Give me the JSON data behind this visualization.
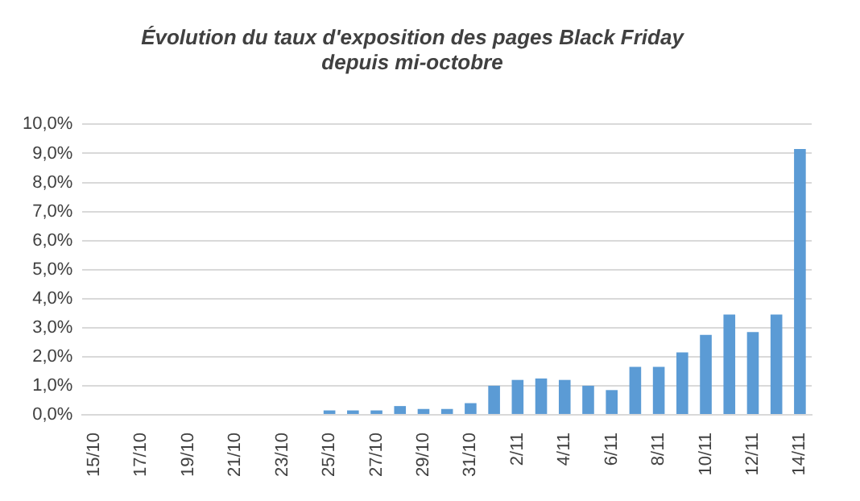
{
  "chart_data": {
    "type": "bar",
    "title": "Évolution du taux d'exposition des pages Black Friday\ndepuis mi-octobre",
    "categories": [
      "15/10",
      null,
      "17/10",
      null,
      "19/10",
      null,
      "21/10",
      null,
      "23/10",
      null,
      "25/10",
      null,
      "27/10",
      null,
      "29/10",
      null,
      "31/10",
      null,
      "2/11",
      null,
      "4/11",
      null,
      "6/11",
      null,
      "8/11",
      null,
      "10/11",
      null,
      "12/11",
      null,
      "14/11"
    ],
    "values": [
      0,
      0,
      0,
      0,
      0,
      0,
      0,
      0,
      0,
      0,
      0.15,
      0.15,
      0.15,
      0.3,
      0.2,
      0.2,
      0.4,
      1.0,
      1.2,
      1.25,
      1.2,
      1.0,
      0.85,
      1.65,
      1.65,
      2.15,
      2.75,
      3.45,
      2.85,
      3.45,
      9.15
    ],
    "color": "#5b9bd5",
    "ylim": [
      0,
      10
    ],
    "yticks": [
      {
        "value": 0,
        "label": "0,0%"
      },
      {
        "value": 1,
        "label": "1,0%"
      },
      {
        "value": 2,
        "label": "2,0%"
      },
      {
        "value": 3,
        "label": "3,0%"
      },
      {
        "value": 4,
        "label": "4,0%"
      },
      {
        "value": 5,
        "label": "5,0%"
      },
      {
        "value": 6,
        "label": "6,0%"
      },
      {
        "value": 7,
        "label": "7,0%"
      },
      {
        "value": 8,
        "label": "8,0%"
      },
      {
        "value": 9,
        "label": "9,0%"
      },
      {
        "value": 10,
        "label": "10,0%"
      }
    ],
    "grid": "y"
  }
}
